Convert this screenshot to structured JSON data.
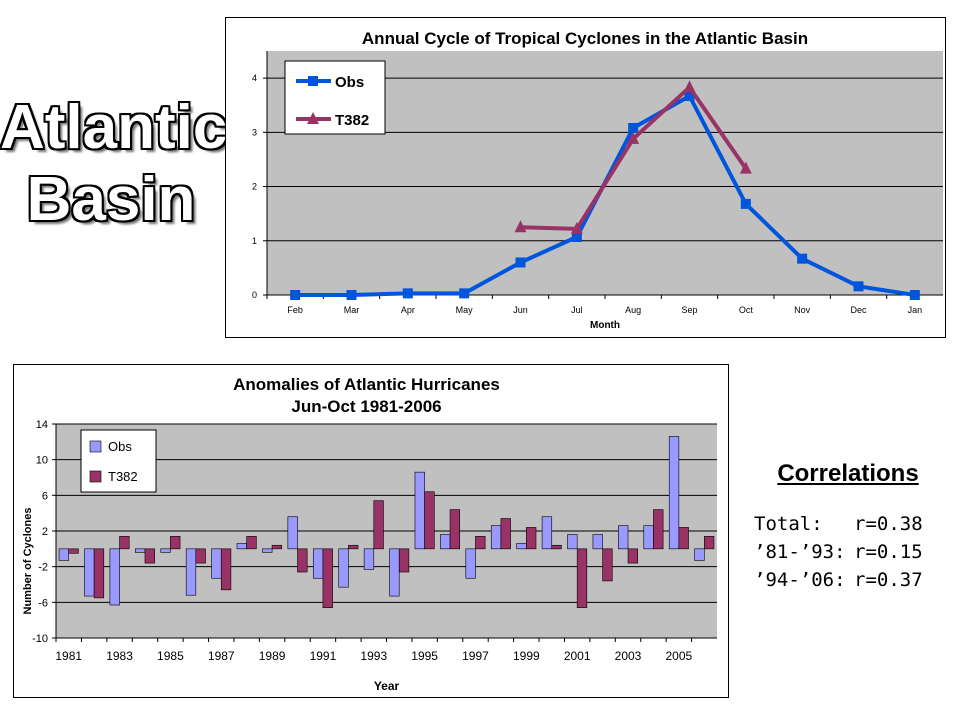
{
  "slide_title": [
    "Atlantic",
    "Basin"
  ],
  "correlations": {
    "heading": "Correlations",
    "rows": [
      {
        "label": "Total:",
        "value": "r=0.38"
      },
      {
        "label": "’81-’93:",
        "value": "r=0.15"
      },
      {
        "label": "’94-’06:",
        "value": "r=0.37"
      }
    ]
  },
  "colors": {
    "obs_line": "#0055dd",
    "t382_line": "#993366",
    "obs_bar": "#9999ff",
    "t382_bar": "#993366",
    "plot_bg": "#c0c0c0"
  },
  "chart_data": [
    {
      "type": "line",
      "title": "Annual Cycle of Tropical Cyclones in the Atlantic Basin",
      "xlabel": "Month",
      "ylabel": "",
      "categories": [
        "Feb",
        "Mar",
        "Apr",
        "May",
        "Jun",
        "Jul",
        "Aug",
        "Sep",
        "Oct",
        "Nov",
        "Dec",
        "Jan"
      ],
      "ylim": [
        0,
        4.5
      ],
      "yticks": [
        0,
        1,
        2,
        3,
        4
      ],
      "grid": true,
      "legend": "top-left",
      "series": [
        {
          "name": "Obs",
          "marker": "square",
          "values": [
            0,
            0,
            0.03,
            0.03,
            0.6,
            1.07,
            3.08,
            3.67,
            1.68,
            0.67,
            0.16,
            0
          ]
        },
        {
          "name": "T382",
          "marker": "triangle",
          "values": [
            null,
            null,
            null,
            null,
            1.25,
            1.22,
            2.88,
            3.83,
            2.33,
            null,
            null,
            null
          ]
        }
      ]
    },
    {
      "type": "bar",
      "title": [
        "Anomalies of Atlantic Hurricanes",
        "Jun-Oct 1981-2006"
      ],
      "xlabel": "Year",
      "ylabel": "Number of Cyclones",
      "ylim": [
        -10,
        14
      ],
      "yticks": [
        -10,
        -6,
        -2,
        2,
        6,
        10,
        14
      ],
      "grid": true,
      "legend": "top-left",
      "categories": [
        1981,
        1982,
        1983,
        1984,
        1985,
        1986,
        1987,
        1988,
        1989,
        1990,
        1991,
        1992,
        1993,
        1994,
        1995,
        1996,
        1997,
        1998,
        1999,
        2000,
        2001,
        2002,
        2003,
        2004,
        2005,
        2006
      ],
      "xtick_labels": [
        "1981",
        "1983",
        "1985",
        "1987",
        "1989",
        "1991",
        "1993",
        "1995",
        "1997",
        "1999",
        "2001",
        "2003",
        "2005"
      ],
      "series": [
        {
          "name": "Obs",
          "values": [
            -1.3,
            -5.3,
            -6.3,
            -0.4,
            -0.4,
            -5.2,
            -3.3,
            0.6,
            -0.4,
            3.6,
            -3.3,
            -4.3,
            -2.3,
            -5.3,
            8.6,
            1.6,
            -3.3,
            2.6,
            0.6,
            3.6,
            1.6,
            1.6,
            2.6,
            2.6,
            12.6,
            -1.3
          ]
        },
        {
          "name": "T382",
          "values": [
            -0.5,
            -5.5,
            1.4,
            -1.6,
            1.4,
            -1.6,
            -4.6,
            1.4,
            0.4,
            -2.6,
            -6.6,
            0.4,
            5.4,
            -2.6,
            6.4,
            4.4,
            1.4,
            3.4,
            2.4,
            0.4,
            -6.6,
            -3.6,
            -1.6,
            4.4,
            2.4,
            1.4
          ]
        }
      ]
    }
  ]
}
